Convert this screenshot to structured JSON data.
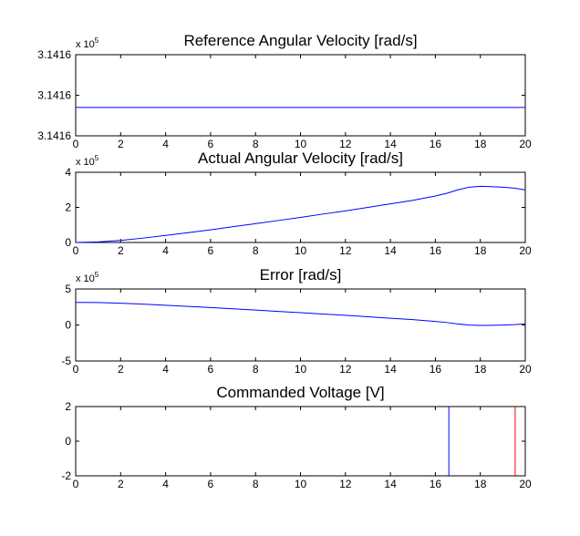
{
  "figure": {
    "background": "#ffffff",
    "line_color": "#0000ff",
    "accent_color": "#ff0000"
  },
  "chart_data": [
    {
      "type": "line",
      "title": "Reference Angular Velocity [rad/s]",
      "xlabel": "",
      "ylabel": "",
      "xlim": [
        0,
        20
      ],
      "ylim": [
        314159.0,
        314161.0
      ],
      "x_ticks": [
        "0",
        "2",
        "4",
        "6",
        "8",
        "10",
        "12",
        "14",
        "16",
        "18",
        "20"
      ],
      "y_ticks": [
        {
          "value": 314159.0,
          "label": "3.1416"
        },
        {
          "value": 314160.0,
          "label": "3.1416"
        },
        {
          "value": 314161.0,
          "label": "3.1416"
        }
      ],
      "multiplier": {
        "base": "x 10",
        "exponent": "5"
      },
      "grid": false,
      "series": [
        {
          "color": "#0000ff",
          "x": [
            0,
            20
          ],
          "y": [
            314159.7,
            314159.7
          ]
        }
      ]
    },
    {
      "type": "line",
      "title": "Actual Angular Velocity [rad/s]",
      "xlabel": "",
      "ylabel": "",
      "xlim": [
        0,
        20
      ],
      "ylim": [
        0,
        400000
      ],
      "x_ticks": [
        "0",
        "2",
        "4",
        "6",
        "8",
        "10",
        "12",
        "14",
        "16",
        "18",
        "20"
      ],
      "y_ticks": [
        {
          "value": 0,
          "label": "0"
        },
        {
          "value": 200000,
          "label": "2"
        },
        {
          "value": 400000,
          "label": "4"
        }
      ],
      "multiplier": {
        "base": "x 10",
        "exponent": "5"
      },
      "grid": false,
      "series": [
        {
          "color": "#0000ff",
          "x": [
            0,
            1,
            2,
            3,
            4,
            5,
            6,
            7,
            8,
            9,
            10,
            11,
            12,
            13,
            14,
            15,
            16,
            16.5,
            17,
            17.5,
            18,
            18.5,
            19,
            19.5,
            20
          ],
          "y": [
            0,
            3000,
            12000,
            25000,
            40000,
            56000,
            72000,
            90000,
            107000,
            125000,
            143000,
            162000,
            180000,
            200000,
            220000,
            240000,
            265000,
            280000,
            300000,
            315000,
            320000,
            318000,
            315000,
            310000,
            300000
          ]
        }
      ]
    },
    {
      "type": "line",
      "title": "Error [rad/s]",
      "xlabel": "",
      "ylabel": "",
      "xlim": [
        0,
        20
      ],
      "ylim": [
        -500000,
        500000
      ],
      "x_ticks": [
        "0",
        "2",
        "4",
        "6",
        "8",
        "10",
        "12",
        "14",
        "16",
        "18",
        "20"
      ],
      "y_ticks": [
        {
          "value": -500000,
          "label": "-5"
        },
        {
          "value": 0,
          "label": "0"
        },
        {
          "value": 500000,
          "label": "5"
        }
      ],
      "multiplier": {
        "base": "x 10",
        "exponent": "5"
      },
      "grid": false,
      "series": [
        {
          "color": "#0000ff",
          "x": [
            0,
            1,
            2,
            3,
            4,
            5,
            6,
            7,
            8,
            9,
            10,
            11,
            12,
            13,
            14,
            15,
            16,
            16.5,
            17,
            17.5,
            18,
            18.5,
            19,
            19.5,
            20
          ],
          "y": [
            314000,
            311000,
            302000,
            289000,
            274000,
            258000,
            242000,
            224000,
            207000,
            189000,
            171000,
            152000,
            134000,
            114000,
            94000,
            74000,
            49000,
            34000,
            14000,
            -1000,
            -6000,
            -4000,
            -1000,
            4000,
            14000
          ]
        }
      ]
    },
    {
      "type": "line",
      "title": "Commanded Voltage [V]",
      "xlabel": "",
      "ylabel": "",
      "xlim": [
        0,
        20
      ],
      "ylim": [
        -2,
        2
      ],
      "x_ticks": [
        "0",
        "2",
        "4",
        "6",
        "8",
        "10",
        "12",
        "14",
        "16",
        "18",
        "20"
      ],
      "y_ticks": [
        {
          "value": -2,
          "label": "-2"
        },
        {
          "value": 0,
          "label": "0"
        },
        {
          "value": 2,
          "label": "2"
        }
      ],
      "multiplier": null,
      "grid": false,
      "series": [
        {
          "color": "#0000ff",
          "x": [
            16.6,
            16.6
          ],
          "y": [
            -2,
            2
          ]
        },
        {
          "color": "#ff0000",
          "x": [
            19.55,
            19.55
          ],
          "y": [
            -2,
            2
          ]
        }
      ]
    }
  ]
}
